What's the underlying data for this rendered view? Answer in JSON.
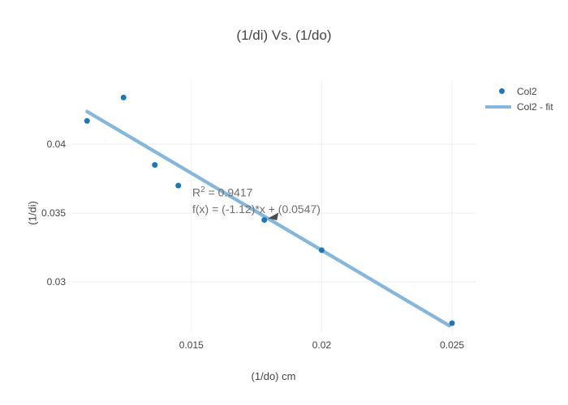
{
  "title": "(1/di) Vs. (1/do)",
  "colors": {
    "point": "#1f77b4",
    "fit_line": "#86b7db",
    "grid": "#eeeeee",
    "text": "#444444",
    "annotation_text": "#6e6e6e",
    "arrow": "#4d4d4d",
    "background": "#ffffff"
  },
  "legend": {
    "items": [
      {
        "label": "Col2",
        "marker": "dot"
      },
      {
        "label": "Col2 - fit",
        "marker": "line"
      }
    ]
  },
  "annotation": {
    "r_base": "R",
    "r_exp": "2",
    "r_value": " = 0.9417",
    "equation": "f(x) = (-1.12)*x + (0.0547)"
  },
  "chart_data": {
    "type": "scatter",
    "title": "(1/di) Vs. (1/do)",
    "xlabel": "(1/do) cm",
    "ylabel": "(1/di)",
    "xlim": [
      0.0104,
      0.0259
    ],
    "ylim": [
      0.02635,
      0.0446
    ],
    "grid": true,
    "legend_position": "right",
    "x_ticks": [
      {
        "v": 0.015,
        "label": "0.015"
      },
      {
        "v": 0.02,
        "label": "0.02"
      },
      {
        "v": 0.025,
        "label": "0.025"
      }
    ],
    "y_ticks": [
      {
        "v": 0.03,
        "label": "0.03"
      },
      {
        "v": 0.035,
        "label": "0.035"
      },
      {
        "v": 0.04,
        "label": "0.04"
      }
    ],
    "series": [
      {
        "name": "Col2",
        "type": "scatter",
        "x": [
          0.011,
          0.0124,
          0.0136,
          0.0145,
          0.0178,
          0.02,
          0.025
        ],
        "y": [
          0.0417,
          0.0434,
          0.0385,
          0.037,
          0.0345,
          0.0323,
          0.027
        ]
      },
      {
        "name": "Col2 - fit",
        "type": "line",
        "slope": -1.12,
        "intercept": 0.0547,
        "x_range": [
          0.011,
          0.0249
        ]
      }
    ],
    "fit": {
      "r_squared": 0.9417,
      "equation": "f(x) = (-1.12)*x + (0.0547)"
    },
    "annotation_target": {
      "x": 0.0178,
      "y": 0.0345
    }
  }
}
